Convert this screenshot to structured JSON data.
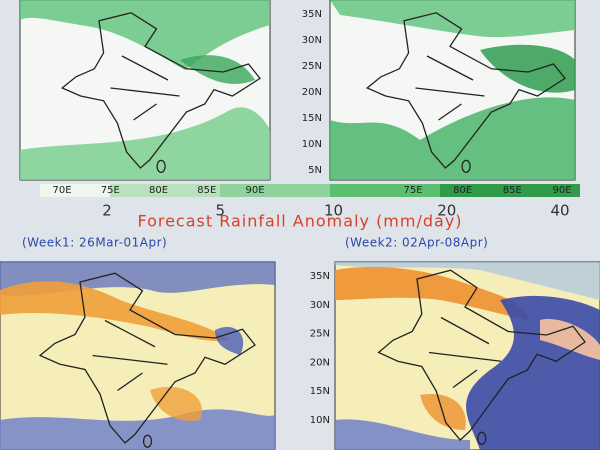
{
  "top_panels": {
    "left": {
      "lon_labels": [
        "70E",
        "75E",
        "80E",
        "85E",
        "90E"
      ]
    },
    "right": {
      "lat_labels": [
        "35N",
        "30N",
        "25N",
        "20N",
        "15N",
        "10N",
        "5N"
      ],
      "lon_labels": [
        "75E",
        "80E",
        "85E",
        "90E"
      ]
    }
  },
  "colorbar": {
    "labels": [
      "2",
      "5",
      "10",
      "20",
      "40"
    ]
  },
  "title": "Forecast Rainfall Anomaly (mm/day)",
  "bottom_panels": {
    "left": {
      "label": "(Week1: 26Mar-01Apr)"
    },
    "right": {
      "label": "(Week2: 02Apr-08Apr)",
      "lat_labels": [
        "35N",
        "30N",
        "25N",
        "20N",
        "15N",
        "10N"
      ]
    }
  }
}
